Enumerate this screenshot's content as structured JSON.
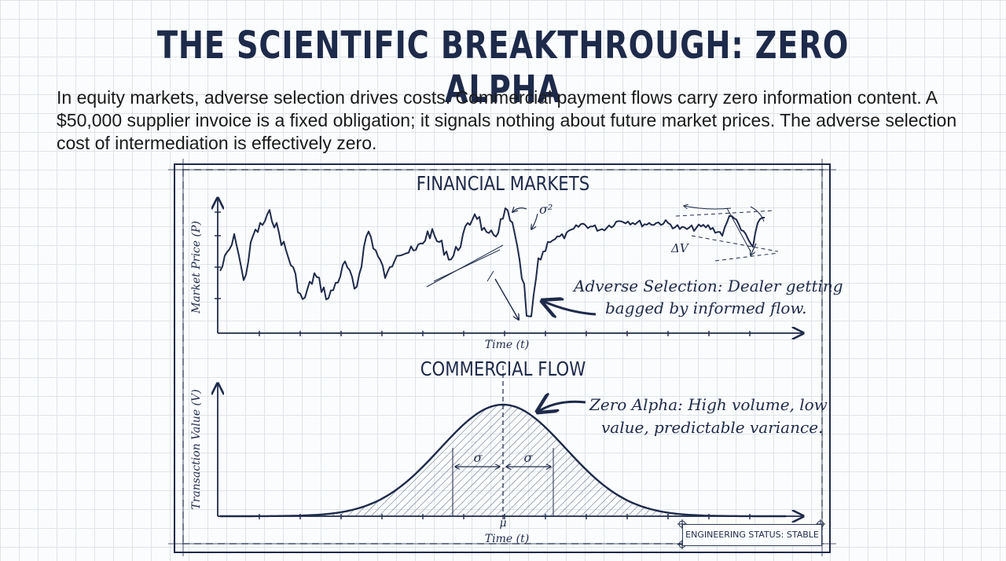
{
  "slide": {
    "title": "THE SCIENTIFIC BREAKTHROUGH: ZERO ALPHA",
    "intro": "In equity markets, adverse selection drives costs. Commercial payment flows carry zero information content. A $50,000 supplier invoice is a fixed obligation; it signals nothing about future market prices. The adverse selection cost of intermediation is effectively zero."
  },
  "financial": {
    "title": "FINANCIAL MARKETS",
    "ylabel": "Market Price (P)",
    "xlabel": "Time (t)",
    "sigma_label": "σ²",
    "delta_label": "ΔV",
    "annotation_line1": "Adverse Selection: Dealer getting",
    "annotation_line2": "bagged by informed flow."
  },
  "commercial": {
    "title": "COMMERCIAL FLOW",
    "ylabel": "Transaction Value (V)",
    "xlabel": "Time (t)",
    "mu_label": "μ",
    "sigma_left": "σ",
    "sigma_right": "σ",
    "annotation_line1": "Zero Alpha: High volume, low",
    "annotation_line2": "value, predictable variance."
  },
  "status": {
    "label": "ENGINEERING STATUS: STABLE"
  },
  "colors": {
    "ink": "#1d2a4a",
    "grid": "#dfe4ea"
  }
}
